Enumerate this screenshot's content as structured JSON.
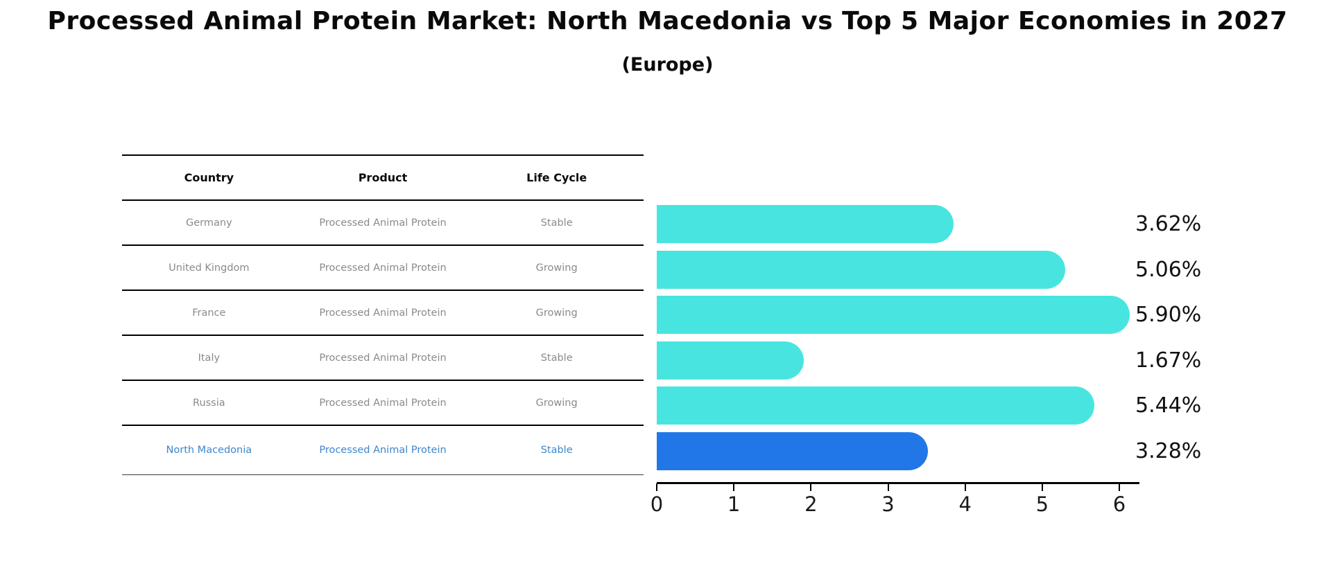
{
  "title": "Processed Animal Protein Market: North Macedonia vs Top 5 Major Economies in 2027",
  "subtitle": "(Europe)",
  "table": {
    "headers": [
      "Country",
      "Product",
      "Life Cycle"
    ],
    "rows": [
      {
        "country": "Germany",
        "product": "Processed Animal Protein",
        "life_cycle": "Stable"
      },
      {
        "country": "United Kingdom",
        "product": "Processed Animal Protein",
        "life_cycle": "Growing"
      },
      {
        "country": "France",
        "product": "Processed Animal Protein",
        "life_cycle": "Growing"
      },
      {
        "country": "Italy",
        "product": "Processed Animal Protein",
        "life_cycle": "Stable"
      },
      {
        "country": "Russia",
        "product": "Processed Animal Protein",
        "life_cycle": "Growing"
      },
      {
        "country": "North Macedonia",
        "product": "Processed Animal Protein",
        "life_cycle": "Stable"
      }
    ]
  },
  "chart_data": {
    "type": "bar",
    "orientation": "horizontal",
    "title": "Processed Animal Protein Market: North Macedonia vs Top 5 Major Economies in 2027",
    "subtitle": "(Europe)",
    "categories": [
      "Germany",
      "United Kingdom",
      "France",
      "Italy",
      "Russia",
      "North Macedonia"
    ],
    "values": [
      3.62,
      5.06,
      5.9,
      1.67,
      5.44,
      3.28
    ],
    "value_labels": [
      "3.62%",
      "5.06%",
      "5.90%",
      "1.67%",
      "5.44%",
      "3.28%"
    ],
    "xlabel": "",
    "ylabel": "",
    "xlim": [
      0,
      6.3
    ],
    "x_ticks": [
      "0",
      "1",
      "2",
      "3",
      "4",
      "5",
      "6"
    ],
    "grid": false,
    "legend": false,
    "bar_color": "#48e5e0",
    "highlight_color": "#2277e8",
    "highlight_index": 5,
    "highlight_style": "dashed-outline",
    "highlight_text_color": "#3d87cc"
  }
}
